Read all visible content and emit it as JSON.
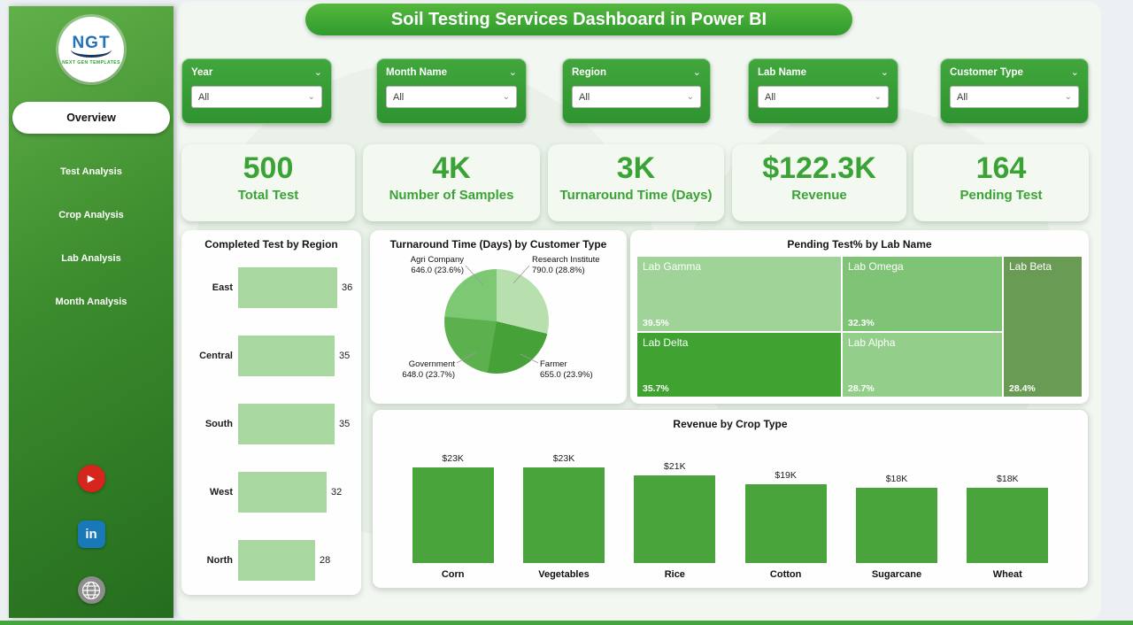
{
  "app": {
    "title": "Soil Testing Services Dashboard in Power BI"
  },
  "sidebar": {
    "logo": {
      "text": "NGT",
      "subtext": "NEXT GEN TEMPLATES"
    },
    "items": [
      {
        "label": "Overview",
        "active": true
      },
      {
        "label": "Test Analysis",
        "active": false
      },
      {
        "label": "Crop Analysis",
        "active": false
      },
      {
        "label": "Lab Analysis",
        "active": false
      },
      {
        "label": "Month Analysis",
        "active": false
      }
    ],
    "social": [
      "youtube",
      "linkedin",
      "website"
    ]
  },
  "filters": [
    {
      "label": "Year",
      "value": "All"
    },
    {
      "label": "Month Name",
      "value": "All"
    },
    {
      "label": "Region",
      "value": "All"
    },
    {
      "label": "Lab Name",
      "value": "All"
    },
    {
      "label": "Customer Type",
      "value": "All"
    }
  ],
  "kpis": [
    {
      "value": "500",
      "label": "Total Test"
    },
    {
      "value": "4K",
      "label": "Number of Samples"
    },
    {
      "value": "3K",
      "label": "Turnaround Time (Days)"
    },
    {
      "value": "$122.3K",
      "label": "Revenue"
    },
    {
      "value": "164",
      "label": "Pending Test"
    }
  ],
  "chart_data": [
    {
      "type": "bar",
      "orientation": "horizontal",
      "title": "Completed Test by Region",
      "categories": [
        "East",
        "Central",
        "South",
        "West",
        "North"
      ],
      "values": [
        36,
        35,
        35,
        32,
        28
      ],
      "bar_color": "#a9d7a0"
    },
    {
      "type": "pie",
      "title": "Turnaround Time (Days) by Customer Type",
      "slices": [
        {
          "label": "Research Institute",
          "value": 790.0,
          "pct": 28.8,
          "detail": "790.0 (28.8%)",
          "color": "#b7e0ae"
        },
        {
          "label": "Farmer",
          "value": 655.0,
          "pct": 23.9,
          "detail": "655.0 (23.9%)",
          "color": "#46a139"
        },
        {
          "label": "Government",
          "value": 648.0,
          "pct": 23.7,
          "detail": "648.0 (23.7%)",
          "color": "#5cb14e"
        },
        {
          "label": "Agri Company",
          "value": 646.0,
          "pct": 23.6,
          "detail": "646.0 (23.6%)",
          "color": "#7dc873"
        }
      ]
    },
    {
      "type": "treemap",
      "title": "Pending Test% by Lab Name",
      "tiles": [
        {
          "label": "Lab Gamma",
          "pct": "39.5%",
          "color": "#9fd398"
        },
        {
          "label": "Lab Omega",
          "pct": "32.3%",
          "color": "#7fc476"
        },
        {
          "label": "Lab Beta",
          "pct": "28.4%",
          "color": "#6a9b55"
        },
        {
          "label": "Lab Delta",
          "pct": "35.7%",
          "color": "#3fa231"
        },
        {
          "label": "Lab Alpha",
          "pct": "28.7%",
          "color": "#93cf8b"
        }
      ]
    },
    {
      "type": "bar",
      "orientation": "vertical",
      "title": "Revenue by Crop Type",
      "categories": [
        "Corn",
        "Vegetables",
        "Rice",
        "Cotton",
        "Sugarcane",
        "Wheat"
      ],
      "values": [
        23,
        23,
        21,
        19,
        18,
        18
      ],
      "labels": [
        "$23K",
        "$23K",
        "$21K",
        "$19K",
        "$18K",
        "$18K"
      ],
      "bar_color": "#4aa43c"
    }
  ],
  "colors": {
    "accent_green": "#3aa335",
    "banner_green": "#2f9c2d",
    "slicer_green": "#38a238"
  }
}
